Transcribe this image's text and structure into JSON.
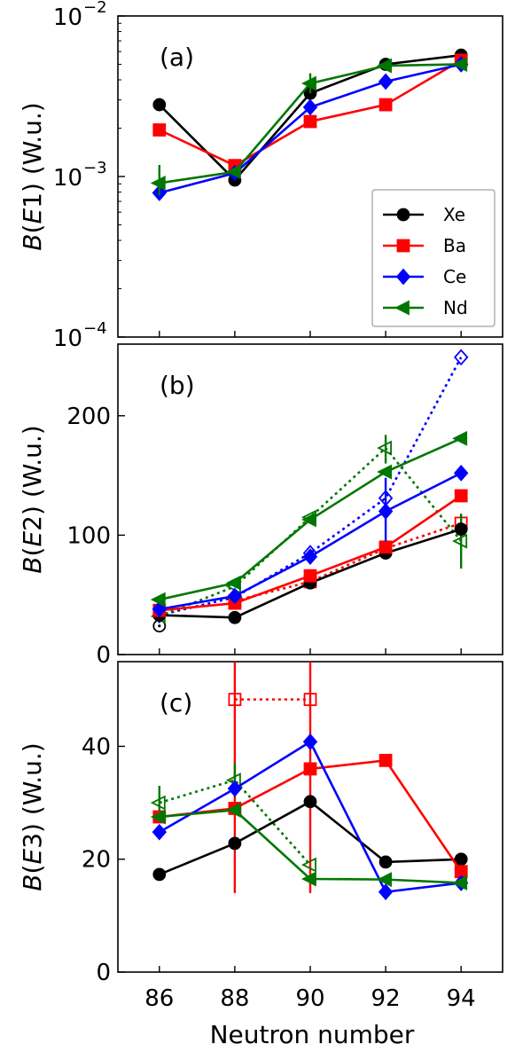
{
  "chart_data": {
    "type": "line",
    "x_label": "Neutron number",
    "x_ticks": [
      "86",
      "88",
      "90",
      "92",
      "94"
    ],
    "x_values": [
      86,
      88,
      90,
      92,
      94
    ],
    "xlim": [
      84.9,
      95.1
    ],
    "legend": {
      "placement": "right",
      "entries": [
        {
          "label": "Xe",
          "color": "#000000",
          "marker": "circle"
        },
        {
          "label": "Ba",
          "color": "#ff0000",
          "marker": "square"
        },
        {
          "label": "Ce",
          "color": "#0000ff",
          "marker": "diamond"
        },
        {
          "label": "Nd",
          "color": "#007700",
          "marker": "triangle-left"
        }
      ]
    },
    "panels": [
      {
        "id": "a",
        "label": "(a)",
        "ylabel_parts": [
          "B(",
          "E1",
          ") (W.u.)"
        ],
        "scale": "log",
        "ylim": [
          0.0001,
          0.01
        ],
        "y_tick_labels": [
          {
            "value": 0.01,
            "base": "10",
            "exp": "−2"
          },
          {
            "value": 0.001,
            "base": "10",
            "exp": "−3"
          },
          {
            "value": 0.0001,
            "base": "10",
            "exp": "−4"
          }
        ],
        "series": [
          {
            "name": "Xe",
            "color": "#000000",
            "marker": "circle",
            "dashed": false,
            "filled": true,
            "points": [
              [
                86,
                0.0028
              ],
              [
                88,
                0.00095
              ],
              [
                90,
                0.0033
              ],
              [
                92,
                0.005
              ],
              [
                94,
                0.0057
              ]
            ]
          },
          {
            "name": "Ba",
            "color": "#ff0000",
            "marker": "square",
            "dashed": false,
            "filled": true,
            "points": [
              [
                86,
                0.00195
              ],
              [
                88,
                0.00117
              ],
              [
                90,
                0.0022
              ],
              [
                92,
                0.0028
              ],
              [
                94,
                0.0053
              ]
            ]
          },
          {
            "name": "Ce",
            "color": "#0000ff",
            "marker": "diamond",
            "dashed": false,
            "filled": true,
            "points": [
              [
                86,
                0.00079
              ],
              [
                88,
                0.00105
              ],
              [
                90,
                0.0027
              ],
              [
                92,
                0.0039
              ],
              [
                94,
                0.005
              ]
            ]
          },
          {
            "name": "Nd",
            "color": "#007700",
            "marker": "triangle-left",
            "dashed": false,
            "filled": true,
            "points": [
              [
                86,
                0.00091
              ],
              [
                88,
                0.00107
              ],
              [
                90,
                0.0038
              ],
              [
                92,
                0.0049
              ],
              [
                94,
                0.005
              ]
            ],
            "errors": [
              [
                86,
                0.00076,
                0.00118
              ],
              [
                90,
                0.0033,
                0.0044
              ]
            ]
          }
        ]
      },
      {
        "id": "b",
        "label": "(b)",
        "ylabel_parts": [
          "B(",
          "E2",
          ") (W.u.)"
        ],
        "scale": "linear",
        "ylim": [
          0,
          260
        ],
        "y_ticks": [
          0,
          100,
          200
        ],
        "series": [
          {
            "name": "Xe",
            "color": "#000000",
            "marker": "circle",
            "dashed": false,
            "filled": true,
            "points": [
              [
                86,
                33
              ],
              [
                88,
                31
              ],
              [
                90,
                60
              ],
              [
                92,
                85
              ],
              [
                94,
                105
              ]
            ]
          },
          {
            "name": "Ba",
            "color": "#ff0000",
            "marker": "square",
            "dashed": false,
            "filled": true,
            "points": [
              [
                86,
                37
              ],
              [
                88,
                43
              ],
              [
                90,
                66
              ],
              [
                92,
                90
              ],
              [
                94,
                133
              ]
            ]
          },
          {
            "name": "Ce",
            "color": "#0000ff",
            "marker": "diamond",
            "dashed": false,
            "filled": true,
            "points": [
              [
                86,
                38
              ],
              [
                88,
                49
              ],
              [
                90,
                82
              ],
              [
                92,
                120
              ],
              [
                94,
                152
              ]
            ],
            "errors": [
              [
                92,
                95,
                148
              ]
            ]
          },
          {
            "name": "Nd",
            "color": "#007700",
            "marker": "triangle-left",
            "dashed": false,
            "filled": true,
            "points": [
              [
                86,
                46
              ],
              [
                88,
                60
              ],
              [
                90,
                113
              ],
              [
                92,
                153
              ],
              [
                94,
                181
              ]
            ]
          },
          {
            "name": "",
            "color": "#000000",
            "marker": "circle",
            "dashed": true,
            "filled": false,
            "dot": true,
            "points": [
              [
                86,
                24
              ]
            ]
          },
          {
            "name": "",
            "color": "#ff0000",
            "marker": "square",
            "dashed": true,
            "filled": false,
            "points": [
              [
                88,
                45
              ],
              [
                90,
                61
              ],
              [
                92,
                89
              ],
              [
                94,
                110
              ]
            ]
          },
          {
            "name": "",
            "color": "#0000ff",
            "marker": "diamond",
            "dashed": true,
            "filled": false,
            "points": [
              [
                86,
                33
              ],
              [
                88,
                48
              ],
              [
                90,
                85
              ],
              [
                92,
                131
              ],
              [
                94,
                249
              ]
            ]
          },
          {
            "name": "",
            "color": "#007700",
            "marker": "triangle-left",
            "dashed": true,
            "filled": false,
            "points": [
              [
                86,
                32
              ],
              [
                88,
                57
              ],
              [
                90,
                115
              ],
              [
                92,
                173
              ],
              [
                94,
                95
              ]
            ],
            "errors": [
              [
                92,
                160,
                184
              ],
              [
                94,
                72,
                118
              ]
            ]
          }
        ]
      },
      {
        "id": "c",
        "label": "(c)",
        "ylabel_parts": [
          "B(",
          "E3",
          ") (W.u.)"
        ],
        "scale": "linear",
        "ylim": [
          0,
          55
        ],
        "y_ticks": [
          0,
          20,
          40
        ],
        "series": [
          {
            "name": "Xe",
            "color": "#000000",
            "marker": "circle",
            "dashed": false,
            "filled": true,
            "points": [
              [
                86,
                17.3
              ],
              [
                88,
                22.8
              ],
              [
                90,
                30.2
              ],
              [
                92,
                19.5
              ],
              [
                94,
                20.0
              ]
            ]
          },
          {
            "name": "Ba",
            "color": "#ff0000",
            "marker": "square",
            "dashed": false,
            "filled": true,
            "points": [
              [
                86,
                27.5
              ],
              [
                88,
                29.0
              ],
              [
                90,
                36.0
              ],
              [
                92,
                37.5
              ],
              [
                94,
                17.8
              ]
            ]
          },
          {
            "name": "Ce",
            "color": "#0000ff",
            "marker": "diamond",
            "dashed": false,
            "filled": true,
            "points": [
              [
                86,
                24.8
              ],
              [
                88,
                32.5
              ],
              [
                90,
                40.8
              ],
              [
                92,
                14.2
              ],
              [
                94,
                15.8
              ]
            ]
          },
          {
            "name": "Nd",
            "color": "#007700",
            "marker": "triangle-left",
            "dashed": false,
            "filled": true,
            "points": [
              [
                86,
                27.5
              ],
              [
                88,
                28.7
              ],
              [
                90,
                16.5
              ],
              [
                92,
                16.4
              ],
              [
                94,
                15.8
              ]
            ]
          },
          {
            "name": "",
            "color": "#ff0000",
            "marker": "square",
            "dashed": true,
            "filled": false,
            "points": [
              [
                88,
                48.3
              ],
              [
                90,
                48.3
              ]
            ],
            "errors": [
              [
                88,
                14,
                55
              ],
              [
                90,
                14,
                55
              ]
            ]
          },
          {
            "name": "",
            "color": "#007700",
            "marker": "triangle-left",
            "dashed": true,
            "filled": false,
            "points": [
              [
                86,
                30.0
              ],
              [
                88,
                34.0
              ],
              [
                90,
                19.0
              ]
            ],
            "errors": [
              [
                86,
                27,
                33
              ],
              [
                88,
                31,
                37
              ]
            ]
          }
        ]
      }
    ]
  }
}
